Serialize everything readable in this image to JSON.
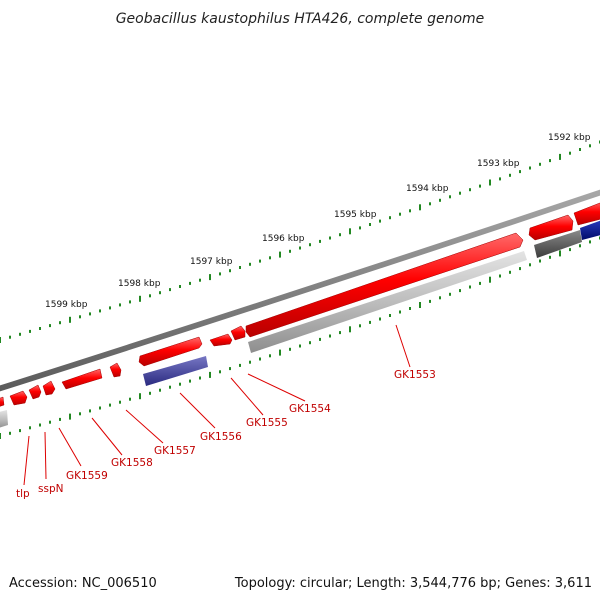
{
  "title": "Geobacillus kaustophilus HTA426, complete genome",
  "footer": {
    "accession": "Accession: NC_006510",
    "info": "Topology: circular; Length: 3,544,776 bp; Genes: 3,611"
  },
  "scale_labels": [
    "1592 kbp",
    "1593 kbp",
    "1594 kbp",
    "1595 kbp",
    "1596 kbp",
    "1597 kbp",
    "1598 kbp",
    "1599 kbp"
  ],
  "gene_labels": [
    "GK1553",
    "GK1554",
    "GK1555",
    "GK1556",
    "GK1557",
    "GK1558",
    "GK1559",
    "sspN",
    "tlp"
  ],
  "colors": {
    "gene_forward": "#ff0000",
    "gene_blue": "#333399",
    "gene_navy": "#001188",
    "cds_gray": "#bbbbbb",
    "cds_dark": "#555555",
    "backbone": "#7a7a7a",
    "tick": "#228822",
    "label": "#c00000"
  }
}
